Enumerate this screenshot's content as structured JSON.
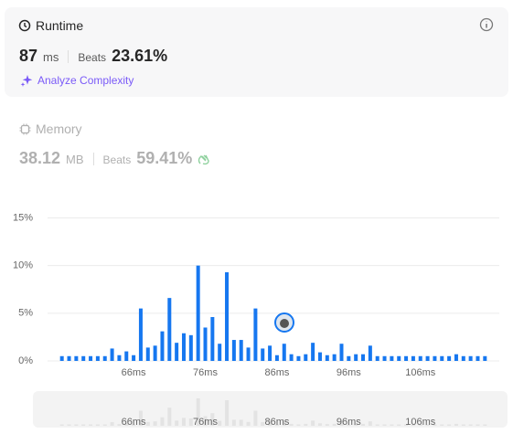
{
  "runtime": {
    "title": "Runtime",
    "value": "87",
    "unit": "ms",
    "beats_label": "Beats",
    "beats": "23.61%",
    "analyze": "Analyze Complexity"
  },
  "memory": {
    "title": "Memory",
    "value": "38.12",
    "unit": "MB",
    "beats_label": "Beats",
    "beats": "59.41%"
  },
  "chart_data": {
    "type": "bar",
    "color": "#1677f0",
    "overview_color": "#e3e3e3",
    "x": [
      56,
      57,
      58,
      59,
      60,
      61,
      62,
      63,
      64,
      65,
      66,
      67,
      68,
      69,
      70,
      71,
      72,
      73,
      74,
      75,
      76,
      77,
      78,
      79,
      80,
      81,
      82,
      83,
      84,
      85,
      86,
      87,
      88,
      89,
      90,
      91,
      92,
      93,
      94,
      95,
      96,
      97,
      98,
      99,
      100,
      101,
      102,
      103,
      104,
      105,
      106,
      107,
      108,
      109,
      110,
      111,
      112,
      113,
      114,
      115
    ],
    "values": [
      0.5,
      0.5,
      0.5,
      0.5,
      0.5,
      0.5,
      0.5,
      1.3,
      0.6,
      1.0,
      0.6,
      5.5,
      1.4,
      1.6,
      3.1,
      6.6,
      1.9,
      2.9,
      2.7,
      10.0,
      3.5,
      4.6,
      1.8,
      9.3,
      2.2,
      2.2,
      1.4,
      5.5,
      1.3,
      1.6,
      0.6,
      1.8,
      0.7,
      0.5,
      0.7,
      1.9,
      0.9,
      0.6,
      0.7,
      1.8,
      0.5,
      0.7,
      0.7,
      1.6,
      0.5,
      0.5,
      0.5,
      0.5,
      0.5,
      0.5,
      0.5,
      0.5,
      0.5,
      0.5,
      0.5,
      0.7,
      0.5,
      0.5,
      0.5,
      0.5
    ],
    "xlim": [
      54,
      117
    ],
    "xticks": [
      {
        "value": 66,
        "label": "66ms"
      },
      {
        "value": 76,
        "label": "76ms"
      },
      {
        "value": 86,
        "label": "86ms"
      },
      {
        "value": 96,
        "label": "96ms"
      },
      {
        "value": 106,
        "label": "106ms"
      }
    ],
    "ylim": [
      0,
      15
    ],
    "yticks": [
      {
        "value": 0,
        "label": "0%"
      },
      {
        "value": 5,
        "label": "5%"
      },
      {
        "value": 10,
        "label": "10%"
      },
      {
        "value": 15,
        "label": "15%"
      }
    ],
    "grid": true
  }
}
